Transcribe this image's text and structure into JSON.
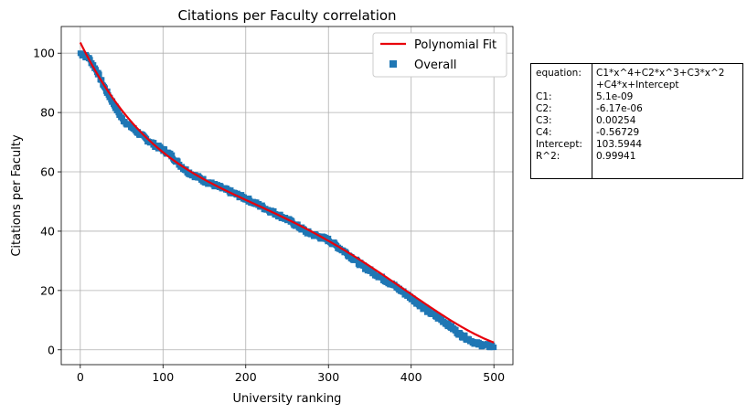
{
  "chart_data": {
    "type": "scatter",
    "title": "Citations per Faculty correlation",
    "xlabel": "University ranking",
    "ylabel": "Citations per Faculty",
    "xlim": [
      -23,
      523
    ],
    "ylim": [
      -5,
      109
    ],
    "x_ticks": [
      0,
      100,
      200,
      300,
      400,
      500
    ],
    "y_ticks": [
      0,
      20,
      40,
      60,
      80,
      100
    ],
    "grid": true,
    "legend_position": "top-right",
    "series": [
      {
        "name": "Overall",
        "kind": "scatter",
        "color": "#1f77b4",
        "marker": "square",
        "x_range": [
          0,
          500
        ],
        "anchor_points": [
          [
            0,
            100
          ],
          [
            10,
            98.5
          ],
          [
            20,
            94
          ],
          [
            30,
            88
          ],
          [
            40,
            83
          ],
          [
            50,
            78
          ],
          [
            60,
            75.5
          ],
          [
            75,
            72
          ],
          [
            90,
            69
          ],
          [
            100,
            67.5
          ],
          [
            110,
            65.5
          ],
          [
            120,
            62.5
          ],
          [
            130,
            60
          ],
          [
            150,
            57
          ],
          [
            175,
            54
          ],
          [
            200,
            51
          ],
          [
            225,
            47.5
          ],
          [
            250,
            44
          ],
          [
            275,
            39.5
          ],
          [
            300,
            37
          ],
          [
            320,
            33
          ],
          [
            340,
            28.5
          ],
          [
            360,
            25
          ],
          [
            380,
            21.5
          ],
          [
            400,
            17.5
          ],
          [
            420,
            13
          ],
          [
            440,
            9.5
          ],
          [
            460,
            5
          ],
          [
            480,
            2
          ],
          [
            500,
            1
          ]
        ]
      },
      {
        "name": "Polynomial Fit",
        "kind": "line",
        "color": "#e8000b",
        "coefficients": {
          "C1": 5.1e-09,
          "C2": -6.17e-06,
          "C3": 0.00254,
          "C4": -0.56729,
          "Intercept": 103.5944
        },
        "x_range": [
          0,
          500
        ]
      }
    ]
  },
  "stats_table": {
    "rows": [
      {
        "key": "equation:",
        "value": "C1*x^4+C2*x^3+C3*x^2"
      },
      {
        "key": "",
        "value": "+C4*x+Intercept"
      },
      {
        "key": "C1:",
        "value": "5.1e-09"
      },
      {
        "key": "C2:",
        "value": "-6.17e-06"
      },
      {
        "key": "C3:",
        "value": "0.00254"
      },
      {
        "key": "C4:",
        "value": "-0.56729"
      },
      {
        "key": "Intercept:",
        "value": "103.5944"
      },
      {
        "key": "R^2:",
        "value": "0.99941"
      }
    ]
  }
}
